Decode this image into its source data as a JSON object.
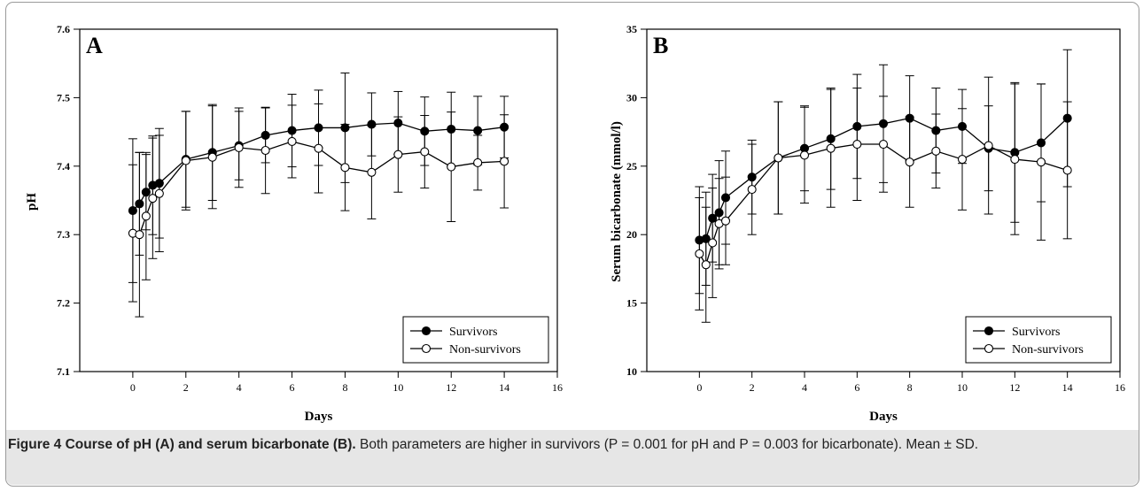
{
  "caption": {
    "title": "Figure 4 Course of pH (A) and serum bicarbonate (B).",
    "text": " Both parameters are higher in survivors (P = 0.001 for pH and P = 0.003 for bicarbonate). Mean ± SD."
  },
  "chart_data": [
    {
      "type": "line",
      "panel_label": "A",
      "xlabel": "Days",
      "ylabel": "pH",
      "xlim": [
        -2,
        16
      ],
      "ylim": [
        7.1,
        7.6
      ],
      "xticks": [
        0,
        2,
        4,
        6,
        8,
        10,
        12,
        14,
        16
      ],
      "yticks": [
        7.1,
        7.2,
        7.3,
        7.4,
        7.5,
        7.6
      ],
      "ytick_labels": [
        "7.1",
        "7.2",
        "7.3",
        "7.4",
        "7.5",
        "7.6"
      ],
      "legend_position": "bottom-right",
      "series": [
        {
          "name": "Survivors",
          "marker": "filled-circle",
          "x": [
            0,
            0.25,
            0.5,
            0.75,
            1,
            2,
            3,
            4,
            5,
            6,
            7,
            8,
            9,
            10,
            11,
            12,
            13,
            14
          ],
          "y": [
            7.335,
            7.345,
            7.362,
            7.372,
            7.375,
            7.41,
            7.42,
            7.43,
            7.445,
            7.452,
            7.456,
            7.456,
            7.461,
            7.463,
            7.451,
            7.454,
            7.452,
            7.457
          ],
          "sd": [
            0.105,
            0.075,
            0.055,
            0.072,
            0.08,
            0.07,
            0.07,
            0.05,
            0.04,
            0.053,
            0.055,
            0.08,
            0.046,
            0.046,
            0.05,
            0.054,
            0.05,
            0.045
          ]
        },
        {
          "name": "Non-survivors",
          "marker": "open-circle",
          "x": [
            0,
            0.25,
            0.5,
            0.75,
            1,
            2,
            3,
            4,
            5,
            6,
            7,
            8,
            9,
            10,
            11,
            12,
            13,
            14
          ],
          "y": [
            7.302,
            7.3,
            7.327,
            7.353,
            7.36,
            7.408,
            7.413,
            7.427,
            7.423,
            7.436,
            7.426,
            7.398,
            7.391,
            7.417,
            7.421,
            7.399,
            7.405,
            7.407
          ],
          "sd": [
            0.1,
            0.12,
            0.093,
            0.088,
            0.085,
            0.072,
            0.075,
            0.058,
            0.063,
            0.053,
            0.065,
            0.063,
            0.068,
            0.055,
            0.053,
            0.08,
            0.04,
            0.068
          ]
        }
      ]
    },
    {
      "type": "line",
      "panel_label": "B",
      "xlabel": "Days",
      "ylabel": "Serum bicarbonate (mmol/l)",
      "xlim": [
        -2,
        16
      ],
      "ylim": [
        10,
        35
      ],
      "xticks": [
        0,
        2,
        4,
        6,
        8,
        10,
        12,
        14,
        16
      ],
      "yticks": [
        10,
        15,
        20,
        25,
        30,
        35
      ],
      "ytick_labels": [
        "10",
        "15",
        "20",
        "25",
        "30",
        "35"
      ],
      "legend_position": "bottom-right",
      "series": [
        {
          "name": "Survivors",
          "marker": "filled-circle",
          "x": [
            0,
            0.25,
            0.5,
            0.75,
            1,
            2,
            3,
            4,
            5,
            6,
            7,
            8,
            9,
            10,
            11,
            12,
            13,
            14
          ],
          "y": [
            19.6,
            19.7,
            21.2,
            21.6,
            22.7,
            24.2,
            25.6,
            26.3,
            27.0,
            27.9,
            28.1,
            28.5,
            27.6,
            27.9,
            26.3,
            26.0,
            26.7,
            28.5
          ],
          "sd": [
            3.9,
            3.4,
            3.2,
            3.8,
            3.4,
            2.7,
            4.1,
            3.1,
            3.7,
            3.8,
            4.3,
            3.1,
            3.1,
            2.7,
            3.1,
            5.1,
            4.3,
            5.0
          ]
        },
        {
          "name": "Non-survivors",
          "marker": "open-circle",
          "x": [
            0,
            0.25,
            0.5,
            0.75,
            1,
            2,
            3,
            4,
            5,
            6,
            7,
            8,
            9,
            10,
            11,
            12,
            13,
            14
          ],
          "y": [
            18.6,
            17.8,
            19.4,
            20.8,
            21.0,
            23.3,
            25.6,
            25.8,
            26.3,
            26.6,
            26.6,
            25.3,
            26.1,
            25.5,
            26.5,
            25.5,
            25.3,
            24.7
          ],
          "sd": [
            4.1,
            4.2,
            4.0,
            3.3,
            3.2,
            3.3,
            4.1,
            3.5,
            4.3,
            4.1,
            3.5,
            3.3,
            2.7,
            3.7,
            5.0,
            5.5,
            5.7,
            5.0
          ]
        }
      ]
    }
  ]
}
